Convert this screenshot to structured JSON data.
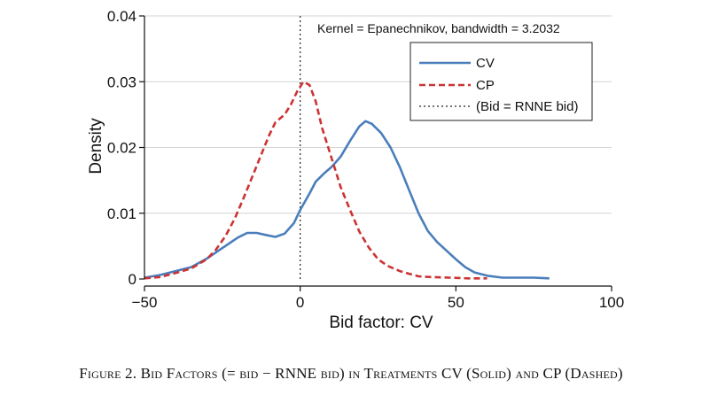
{
  "chart_data": {
    "type": "line",
    "annotation": "Kernel = Epanechnikov, bandwidth = 3.2032",
    "xlabel": "Bid factor: CV",
    "ylabel": "Density",
    "xlim": [
      -50,
      100
    ],
    "ylim": [
      0,
      0.04
    ],
    "x_ticks": [
      -50,
      0,
      50,
      100
    ],
    "x_tick_labels": [
      "−50",
      "0",
      "50",
      "100"
    ],
    "y_ticks": [
      0,
      0.01,
      0.02,
      0.03,
      0.04
    ],
    "y_tick_labels": [
      "0",
      "0.01",
      "0.02",
      "0.03",
      "0.04"
    ],
    "grid": "horizontal",
    "legend_position": "top-right",
    "reference_line": {
      "x": 0,
      "label": "(Bid = RNNE bid)",
      "style": "dotted",
      "color": "#222222"
    },
    "series": [
      {
        "name": "CV",
        "color": "#4a7ebb",
        "style": "solid",
        "points": [
          [
            -50,
            0.0002
          ],
          [
            -45,
            0.0006
          ],
          [
            -40,
            0.0012
          ],
          [
            -35,
            0.0018
          ],
          [
            -30,
            0.0031
          ],
          [
            -25,
            0.0047
          ],
          [
            -20,
            0.0063
          ],
          [
            -17,
            0.007
          ],
          [
            -14,
            0.007
          ],
          [
            -11,
            0.0067
          ],
          [
            -8,
            0.0064
          ],
          [
            -5,
            0.0069
          ],
          [
            -2,
            0.0085
          ],
          [
            0,
            0.0105
          ],
          [
            3,
            0.013
          ],
          [
            5,
            0.0148
          ],
          [
            8,
            0.0162
          ],
          [
            10,
            0.017
          ],
          [
            13,
            0.0186
          ],
          [
            16,
            0.021
          ],
          [
            19,
            0.0232
          ],
          [
            21,
            0.024
          ],
          [
            23,
            0.0236
          ],
          [
            26,
            0.0222
          ],
          [
            29,
            0.02
          ],
          [
            32,
            0.017
          ],
          [
            35,
            0.0135
          ],
          [
            38,
            0.01
          ],
          [
            41,
            0.0073
          ],
          [
            44,
            0.0056
          ],
          [
            47,
            0.0043
          ],
          [
            50,
            0.003
          ],
          [
            53,
            0.0018
          ],
          [
            56,
            0.001
          ],
          [
            60,
            0.0005
          ],
          [
            65,
            0.0002
          ],
          [
            70,
            0.0002
          ],
          [
            75,
            0.0002
          ],
          [
            80,
            0.0001
          ]
        ]
      },
      {
        "name": "CP",
        "color": "#cc3333",
        "style": "dashed",
        "points": [
          [
            -50,
            0.0001
          ],
          [
            -45,
            0.0003
          ],
          [
            -40,
            0.0009
          ],
          [
            -35,
            0.0016
          ],
          [
            -30,
            0.003
          ],
          [
            -27,
            0.0045
          ],
          [
            -24,
            0.0065
          ],
          [
            -21,
            0.0092
          ],
          [
            -18,
            0.0125
          ],
          [
            -15,
            0.016
          ],
          [
            -12,
            0.0195
          ],
          [
            -10,
            0.0218
          ],
          [
            -8,
            0.0238
          ],
          [
            -5,
            0.025
          ],
          [
            -3,
            0.0265
          ],
          [
            -1,
            0.0285
          ],
          [
            1,
            0.03
          ],
          [
            3,
            0.0295
          ],
          [
            5,
            0.027
          ],
          [
            7,
            0.023
          ],
          [
            10,
            0.0185
          ],
          [
            13,
            0.014
          ],
          [
            16,
            0.0105
          ],
          [
            19,
            0.0072
          ],
          [
            22,
            0.0048
          ],
          [
            25,
            0.003
          ],
          [
            28,
            0.002
          ],
          [
            32,
            0.0012
          ],
          [
            35,
            0.0008
          ],
          [
            38,
            0.0004
          ],
          [
            42,
            0.0003
          ],
          [
            48,
            0.0002
          ],
          [
            54,
            0.0001
          ],
          [
            60,
            0.0001
          ]
        ]
      }
    ]
  },
  "caption": "Figure 2. Bid Factors (=  bid − RNNE bid) in Treatments CV (Solid) and CP (Dashed)"
}
